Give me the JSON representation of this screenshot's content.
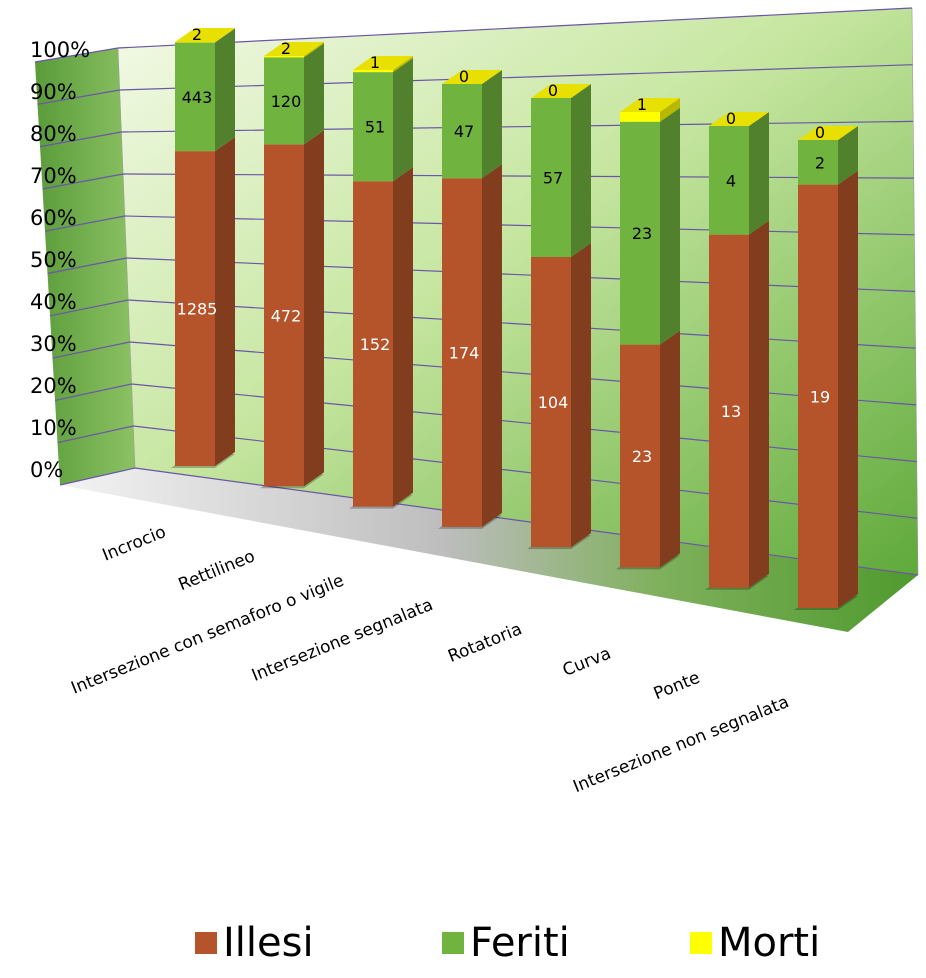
{
  "chart_data": {
    "type": "bar",
    "stacked": "percent",
    "categories": [
      "Incrocio",
      "Rettilineo",
      "Intersezione con semaforo o vigile",
      "Intersezione segnalata",
      "Rotatoria",
      "Curva",
      "Ponte",
      "Intersezione non segnalata"
    ],
    "series": [
      {
        "name": "Illesi",
        "values": [
          1285,
          472,
          152,
          174,
          104,
          23,
          13,
          19
        ],
        "color": "#B5532A"
      },
      {
        "name": "Feriti",
        "values": [
          443,
          120,
          51,
          47,
          57,
          23,
          4,
          2
        ],
        "color": "#70B33E"
      },
      {
        "name": "Morti",
        "values": [
          2,
          2,
          1,
          0,
          0,
          1,
          0,
          0
        ],
        "color": "#FFFF00"
      }
    ],
    "y_ticks": [
      "0%",
      "10%",
      "20%",
      "30%",
      "40%",
      "50%",
      "60%",
      "70%",
      "80%",
      "90%",
      "100%"
    ],
    "ylim": [
      0,
      100
    ],
    "legend_position": "bottom",
    "grid": true
  },
  "legend": {
    "items": [
      {
        "label": "Illesi",
        "color": "#B5532A"
      },
      {
        "label": "Feriti",
        "color": "#70B33E"
      },
      {
        "label": "Morti",
        "color": "#FFFF00"
      }
    ]
  }
}
